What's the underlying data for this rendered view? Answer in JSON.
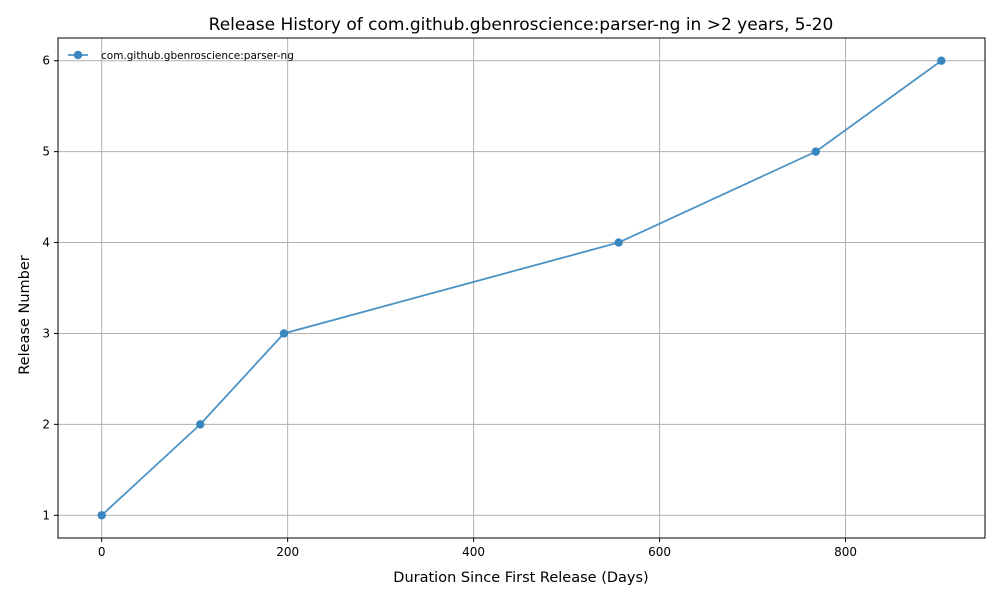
{
  "chart_data": {
    "type": "line",
    "title": "Release History of com.github.gbenroscience:parser-ng in >2 years, 5-20",
    "xlabel": "Duration Since First Release (Days)",
    "ylabel": "Release Number",
    "xlim": [
      -47,
      950
    ],
    "ylim": [
      0.75,
      6.25
    ],
    "xticks": [
      0,
      200,
      400,
      600,
      800
    ],
    "yticks": [
      1,
      2,
      3,
      4,
      5,
      6
    ],
    "grid": true,
    "legend_position": "top-left",
    "series": [
      {
        "name": "com.github.gbenroscience:parser-ng",
        "color": "#3a87bf",
        "marker": "circle",
        "x": [
          0,
          106,
          196,
          556,
          768,
          903
        ],
        "y": [
          1,
          2,
          3,
          4,
          5,
          6
        ]
      }
    ]
  }
}
